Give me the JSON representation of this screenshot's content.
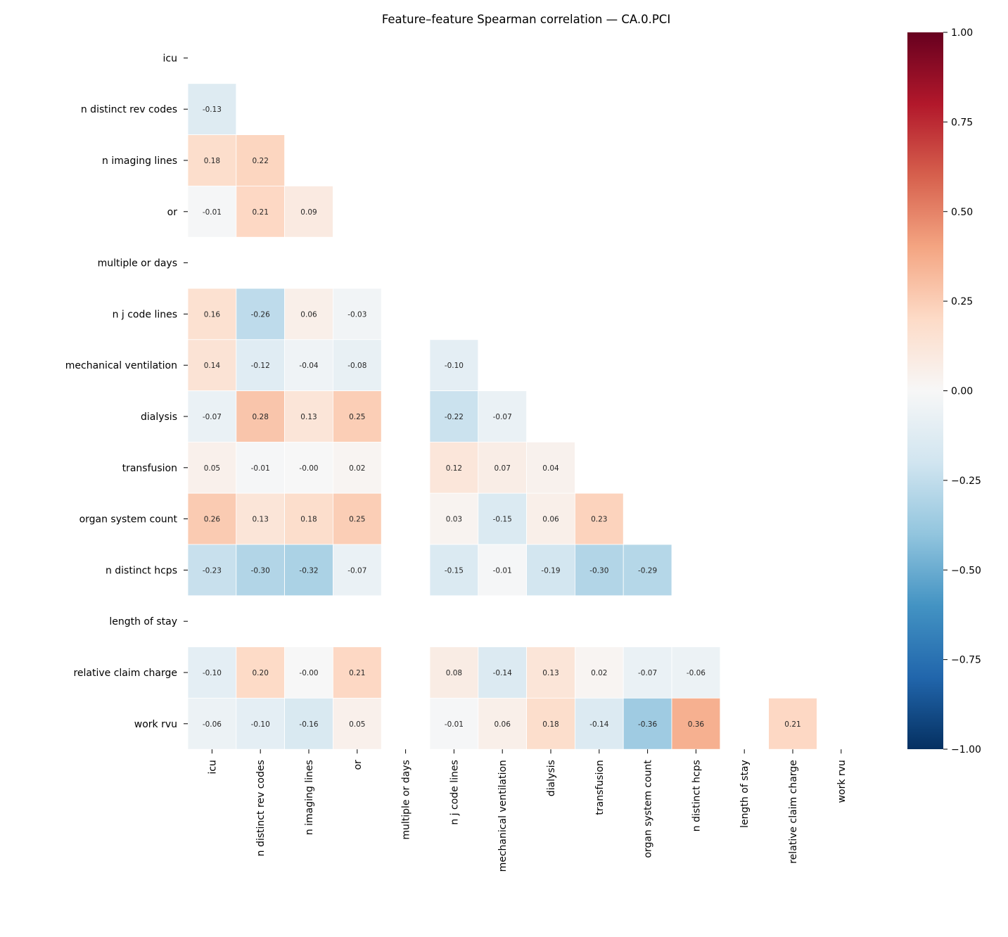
{
  "chart_data": {
    "type": "heatmap",
    "title": "Feature–feature Spearman correlation — CA.0.PCI",
    "labels": [
      "icu",
      "n distinct rev codes",
      "n imaging lines",
      "or",
      "multiple or days",
      "n j code lines",
      "mechanical ventilation",
      "dialysis",
      "transfusion",
      "organ system count",
      "n distinct hcps",
      "length of stay",
      "relative claim charge",
      "work rvu"
    ],
    "mask": "upper triangle and diagonal hidden; NaN cells blank",
    "lower_triangle": [
      [],
      [
        -0.13
      ],
      [
        0.18,
        0.22
      ],
      [
        -0.01,
        0.21,
        0.09
      ],
      [
        null,
        null,
        null,
        null
      ],
      [
        0.16,
        -0.26,
        0.06,
        -0.03,
        null
      ],
      [
        0.14,
        -0.12,
        -0.04,
        -0.08,
        null,
        -0.1
      ],
      [
        -0.07,
        0.28,
        0.13,
        0.25,
        null,
        -0.22,
        -0.07
      ],
      [
        0.05,
        -0.01,
        -0.0,
        0.02,
        null,
        0.12,
        0.07,
        0.04
      ],
      [
        0.26,
        0.13,
        0.18,
        0.25,
        null,
        0.03,
        -0.15,
        0.06,
        0.23
      ],
      [
        -0.23,
        -0.3,
        -0.32,
        -0.07,
        null,
        -0.15,
        -0.01,
        -0.19,
        -0.3,
        -0.29
      ],
      [
        null,
        null,
        null,
        null,
        null,
        null,
        null,
        null,
        null,
        null,
        null
      ],
      [
        -0.1,
        0.2,
        -0.0,
        0.21,
        null,
        0.08,
        -0.14,
        0.13,
        0.02,
        -0.07,
        -0.06,
        null
      ],
      [
        -0.06,
        -0.1,
        -0.16,
        0.05,
        null,
        -0.01,
        0.06,
        0.18,
        -0.14,
        -0.36,
        0.36,
        null,
        0.21
      ]
    ],
    "colormap": "RdBu_r",
    "vmin": -1,
    "vmax": 1,
    "colorbar_ticks": [
      "1.00",
      "0.75",
      "0.50",
      "0.25",
      "0.00",
      "−0.25",
      "−0.50",
      "−0.75",
      "−1.00"
    ],
    "colorbar_tick_values": [
      1,
      0.75,
      0.5,
      0.25,
      0,
      -0.25,
      -0.5,
      -0.75,
      -1
    ],
    "colors": [
      "#053061",
      "#2166ac",
      "#4393c3",
      "#92c5de",
      "#d1e5f0",
      "#f7f7f7",
      "#fddbc7",
      "#f4a582",
      "#d6604d",
      "#b2182b",
      "#67001f"
    ]
  }
}
